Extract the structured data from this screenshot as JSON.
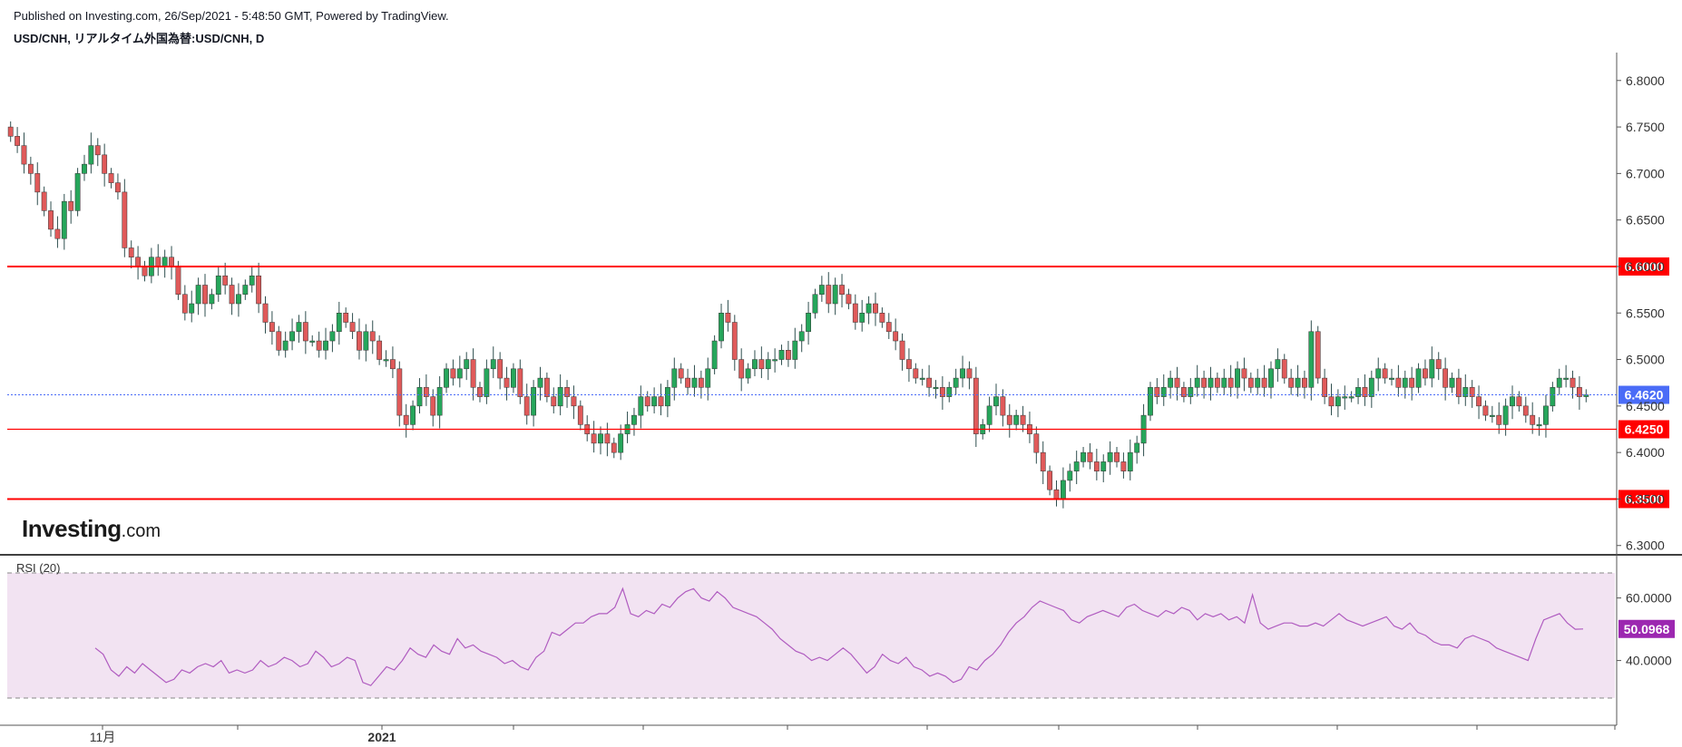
{
  "header": {
    "published": "Published on Investing.com, 26/Sep/2021 - 5:48:50 GMT, Powered by TradingView.",
    "symbol": "USD/CNH, リアルタイム外国為替:USD/CNH, D"
  },
  "logo": {
    "main": "Investing",
    "sub": ".com"
  },
  "colors": {
    "up": "#26a65b",
    "down": "#e05a5a",
    "wick": "#2f4f4f",
    "support_resistance": "#ff0000",
    "current_price": "#4a6cf7",
    "rsi_line": "#b05cc0",
    "rsi_fill": "#f2e3f2",
    "rsi_tag": "#9c27b0"
  },
  "chart_data": [
    {
      "type": "candlestick",
      "title": "USD/CNH, リアルタイム外国為替:USD/CNH, D",
      "ylim": [
        6.29,
        6.83
      ],
      "yticks": [
        "6.8000",
        "6.7500",
        "6.7000",
        "6.6500",
        "6.6000",
        "6.5500",
        "6.5000",
        "6.4500",
        "6.4000",
        "6.3500",
        "6.3000"
      ],
      "xticks": [
        "11月",
        "2021"
      ],
      "horizontal_lines": [
        {
          "value": 6.6,
          "label": "6.6000",
          "style": "solid-thick"
        },
        {
          "value": 6.425,
          "label": "6.4250",
          "style": "solid"
        },
        {
          "value": 6.35,
          "label": "6.3500",
          "style": "solid-thick"
        }
      ],
      "current_price": {
        "value": 6.462,
        "label": "6.4620",
        "style": "dotted"
      },
      "closes": [
        6.74,
        6.73,
        6.71,
        6.7,
        6.68,
        6.66,
        6.64,
        6.63,
        6.67,
        6.66,
        6.7,
        6.71,
        6.73,
        6.72,
        6.7,
        6.69,
        6.68,
        6.62,
        6.61,
        6.6,
        6.59,
        6.61,
        6.6,
        6.61,
        6.6,
        6.57,
        6.55,
        6.56,
        6.58,
        6.56,
        6.57,
        6.59,
        6.58,
        6.56,
        6.57,
        6.58,
        6.59,
        6.56,
        6.54,
        6.53,
        6.51,
        6.52,
        6.53,
        6.54,
        6.52,
        6.52,
        6.51,
        6.52,
        6.53,
        6.55,
        6.54,
        6.53,
        6.51,
        6.53,
        6.52,
        6.5,
        6.5,
        6.49,
        6.44,
        6.43,
        6.45,
        6.47,
        6.46,
        6.44,
        6.47,
        6.49,
        6.48,
        6.49,
        6.5,
        6.47,
        6.46,
        6.49,
        6.5,
        6.48,
        6.47,
        6.49,
        6.46,
        6.44,
        6.47,
        6.48,
        6.46,
        6.45,
        6.47,
        6.46,
        6.45,
        6.43,
        6.42,
        6.41,
        6.42,
        6.41,
        6.4,
        6.42,
        6.43,
        6.44,
        6.46,
        6.45,
        6.46,
        6.45,
        6.47,
        6.49,
        6.48,
        6.47,
        6.48,
        6.47,
        6.49,
        6.52,
        6.55,
        6.54,
        6.5,
        6.48,
        6.49,
        6.5,
        6.49,
        6.5,
        6.5,
        6.51,
        6.5,
        6.52,
        6.53,
        6.55,
        6.57,
        6.58,
        6.56,
        6.58,
        6.57,
        6.56,
        6.54,
        6.55,
        6.56,
        6.55,
        6.54,
        6.53,
        6.52,
        6.5,
        6.49,
        6.48,
        6.48,
        6.47,
        6.47,
        6.46,
        6.47,
        6.48,
        6.49,
        6.48,
        6.42,
        6.43,
        6.45,
        6.46,
        6.44,
        6.43,
        6.44,
        6.43,
        6.42,
        6.4,
        6.38,
        6.36,
        6.35,
        6.37,
        6.38,
        6.39,
        6.4,
        6.39,
        6.38,
        6.39,
        6.4,
        6.39,
        6.38,
        6.4,
        6.41,
        6.44,
        6.47,
        6.46,
        6.47,
        6.48,
        6.47,
        6.46,
        6.47,
        6.48,
        6.47,
        6.48,
        6.47,
        6.48,
        6.47,
        6.49,
        6.48,
        6.47,
        6.48,
        6.47,
        6.49,
        6.5,
        6.48,
        6.47,
        6.48,
        6.47,
        6.53,
        6.48,
        6.46,
        6.45,
        6.46,
        6.46,
        6.46,
        6.47,
        6.46,
        6.48,
        6.49,
        6.48,
        6.48,
        6.47,
        6.48,
        6.47,
        6.49,
        6.48,
        6.5,
        6.49,
        6.47,
        6.48,
        6.46,
        6.47,
        6.46,
        6.45,
        6.44,
        6.44,
        6.43,
        6.45,
        6.46,
        6.45,
        6.44,
        6.43,
        6.43,
        6.45,
        6.47,
        6.48,
        6.48,
        6.47,
        6.46,
        6.462
      ]
    },
    {
      "type": "line",
      "title": "RSI (20)",
      "ylim": [
        28,
        68
      ],
      "yticks": [
        "60.0000",
        "40.0000"
      ],
      "bands": [
        30,
        70
      ],
      "current_value": {
        "value": 50.0968,
        "label": "50.0968"
      },
      "values": [
        44,
        42,
        37,
        35,
        38,
        36,
        39,
        37,
        35,
        33,
        34,
        37,
        36,
        38,
        39,
        38,
        40,
        36,
        37,
        36,
        37,
        40,
        38,
        39,
        41,
        40,
        38,
        39,
        43,
        41,
        38,
        39,
        41,
        40,
        33,
        32,
        35,
        38,
        37,
        40,
        44,
        42,
        41,
        45,
        43,
        42,
        47,
        44,
        45,
        43,
        42,
        41,
        39,
        40,
        38,
        37,
        41,
        43,
        49,
        48,
        50,
        52,
        52,
        54,
        55,
        55,
        57,
        63,
        55,
        54,
        56,
        55,
        58,
        57,
        60,
        62,
        63,
        60,
        59,
        62,
        60,
        57,
        56,
        55,
        54,
        52,
        50,
        47,
        45,
        43,
        42,
        40,
        41,
        40,
        42,
        44,
        42,
        39,
        36,
        38,
        42,
        40,
        39,
        41,
        38,
        37,
        35,
        36,
        35,
        33,
        34,
        38,
        37,
        40,
        42,
        45,
        49,
        52,
        54,
        57,
        59,
        58,
        57,
        56,
        53,
        52,
        54,
        55,
        56,
        55,
        54,
        57,
        58,
        56,
        55,
        54,
        56,
        55,
        57,
        56,
        53,
        55,
        54,
        55,
        53,
        54,
        52,
        61,
        52,
        50,
        51,
        52,
        52,
        51,
        51,
        52,
        51,
        53,
        55,
        53,
        52,
        51,
        52,
        53,
        54,
        51,
        50,
        52,
        49,
        48,
        46,
        45,
        45,
        44,
        47,
        48,
        47,
        46,
        44,
        43,
        42,
        41,
        40,
        47,
        53,
        54,
        55,
        52,
        50,
        50.0968
      ]
    }
  ]
}
